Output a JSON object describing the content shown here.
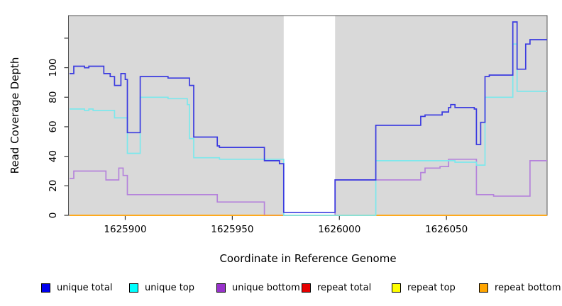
{
  "chart_data": {
    "type": "line",
    "step": true,
    "title": "",
    "xlabel": "Coordinate in Reference Genome",
    "ylabel": "Read Coverage Depth",
    "xlim": [
      1625873.5,
      1626097
    ],
    "ylim": [
      0,
      135.3
    ],
    "x_ticks": [
      1625900,
      1625950,
      1626000,
      1626050
    ],
    "y_ticks": [
      0,
      20,
      40,
      60,
      80,
      100
    ],
    "y_unlabeled_tick": 120,
    "grid": false,
    "plot_bg": "#D9D9D9",
    "gap_band": {
      "from": 1625974,
      "to": 1625998,
      "color": "#FFFFFF"
    },
    "legend_position": "bottom",
    "draw_order": [
      "repeat total",
      "repeat top",
      "unique bottom",
      "repeat bottom",
      "unique top",
      "unique total"
    ],
    "series": [
      {
        "name": "unique total",
        "legend_color": "#0000EE",
        "line_color": "#3B3BE0",
        "points": [
          [
            1625874,
            96
          ],
          [
            1625876,
            101
          ],
          [
            1625881,
            100
          ],
          [
            1625883,
            101
          ],
          [
            1625890,
            96
          ],
          [
            1625893,
            94
          ],
          [
            1625895,
            88
          ],
          [
            1625898,
            96
          ],
          [
            1625900,
            92
          ],
          [
            1625901,
            56
          ],
          [
            1625907,
            94
          ],
          [
            1625920,
            93
          ],
          [
            1625930,
            88
          ],
          [
            1625932,
            53
          ],
          [
            1625943,
            47
          ],
          [
            1625944,
            46
          ],
          [
            1625965,
            37
          ],
          [
            1625972,
            35
          ],
          [
            1625974,
            2
          ],
          [
            1625998,
            24
          ],
          [
            1626017,
            61
          ],
          [
            1626038,
            67
          ],
          [
            1626040,
            68
          ],
          [
            1626048,
            70
          ],
          [
            1626051,
            73
          ],
          [
            1626052,
            75
          ],
          [
            1626054,
            73
          ],
          [
            1626063,
            72
          ],
          [
            1626064,
            48
          ],
          [
            1626066,
            63
          ],
          [
            1626068,
            94
          ],
          [
            1626070,
            95
          ],
          [
            1626081,
            131
          ],
          [
            1626083,
            99
          ],
          [
            1626087,
            116
          ],
          [
            1626089,
            119
          ]
        ]
      },
      {
        "name": "unique top",
        "legend_color": "#00FFFF",
        "line_color": "#7CE8EC",
        "points": [
          [
            1625874,
            72
          ],
          [
            1625881,
            71
          ],
          [
            1625883,
            72
          ],
          [
            1625885,
            71
          ],
          [
            1625895,
            66
          ],
          [
            1625901,
            42
          ],
          [
            1625907,
            80
          ],
          [
            1625920,
            79
          ],
          [
            1625929,
            75
          ],
          [
            1625930,
            52
          ],
          [
            1625932,
            39
          ],
          [
            1625944,
            38
          ],
          [
            1625974,
            0
          ],
          [
            1626017,
            37
          ],
          [
            1626054,
            36
          ],
          [
            1626064,
            34
          ],
          [
            1626068,
            80
          ],
          [
            1626081,
            116
          ],
          [
            1626083,
            84
          ]
        ]
      },
      {
        "name": "unique bottom",
        "legend_color": "#9932CC",
        "line_color": "#B583DB",
        "points": [
          [
            1625874,
            25
          ],
          [
            1625876,
            30
          ],
          [
            1625891,
            24
          ],
          [
            1625897,
            32
          ],
          [
            1625899,
            27
          ],
          [
            1625901,
            14
          ],
          [
            1625943,
            9
          ],
          [
            1625965,
            0
          ],
          [
            1625998,
            24
          ],
          [
            1626038,
            29
          ],
          [
            1626040,
            32
          ],
          [
            1626047,
            33
          ],
          [
            1626051,
            38
          ],
          [
            1626064,
            14
          ],
          [
            1626072,
            13
          ],
          [
            1626089,
            37
          ]
        ]
      },
      {
        "name": "repeat total",
        "legend_color": "#E60000",
        "line_color": "#E60000",
        "points": [
          [
            1625874,
            0
          ]
        ]
      },
      {
        "name": "repeat top",
        "legend_color": "#FFFF00",
        "line_color": "#FFFF00",
        "points": [
          [
            1625874,
            0
          ]
        ]
      },
      {
        "name": "repeat bottom",
        "legend_color": "#FFA500",
        "line_color": "#FFA51F",
        "points": [
          [
            1625874,
            0
          ]
        ]
      }
    ]
  }
}
